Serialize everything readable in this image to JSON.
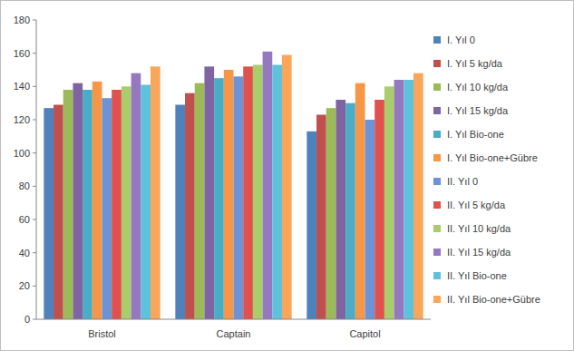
{
  "chart_data": {
    "type": "bar",
    "categories": [
      "Bristol",
      "Captain",
      "Capitol"
    ],
    "series": [
      {
        "name": "I. Yıl 0",
        "color": "#4f81bd",
        "values": [
          127,
          129,
          113
        ]
      },
      {
        "name": "I. Yıl 5 kg/da",
        "color": "#c0504d",
        "values": [
          129,
          136,
          123
        ]
      },
      {
        "name": "I. Yıl 10 kg/da",
        "color": "#9bbb59",
        "values": [
          138,
          142,
          127
        ]
      },
      {
        "name": "I. Yıl 15 kg/da",
        "color": "#8064a2",
        "values": [
          142,
          152,
          132
        ]
      },
      {
        "name": "I. Yıl Bio-one",
        "color": "#4bacc6",
        "values": [
          138,
          145,
          130
        ]
      },
      {
        "name": "I. Yıl Bio-one+Gübre",
        "color": "#f79646",
        "values": [
          143,
          150,
          142
        ]
      },
      {
        "name": "II. Yıl 0",
        "color": "#6b93d6",
        "values": [
          133,
          146,
          120
        ]
      },
      {
        "name": "II. Yıl 5 kg/da",
        "color": "#e0504d",
        "values": [
          138,
          152,
          132
        ]
      },
      {
        "name": "II. Yıl 10 kg/da",
        "color": "#a9cd6a",
        "values": [
          140,
          153,
          140
        ]
      },
      {
        "name": "II. Yıl 15 kg/da",
        "color": "#9478c0",
        "values": [
          148,
          161,
          144
        ]
      },
      {
        "name": "II. Yıl Bio-one",
        "color": "#5fc1db",
        "values": [
          141,
          153,
          144
        ]
      },
      {
        "name": "II. Yıl Bio-one+Gübre",
        "color": "#f9a65a",
        "values": [
          152,
          159,
          148
        ]
      }
    ],
    "ylim": [
      0,
      180
    ],
    "yticks": [
      0,
      20,
      40,
      60,
      80,
      100,
      120,
      140,
      160,
      180
    ],
    "grid": false,
    "legend": "right"
  }
}
